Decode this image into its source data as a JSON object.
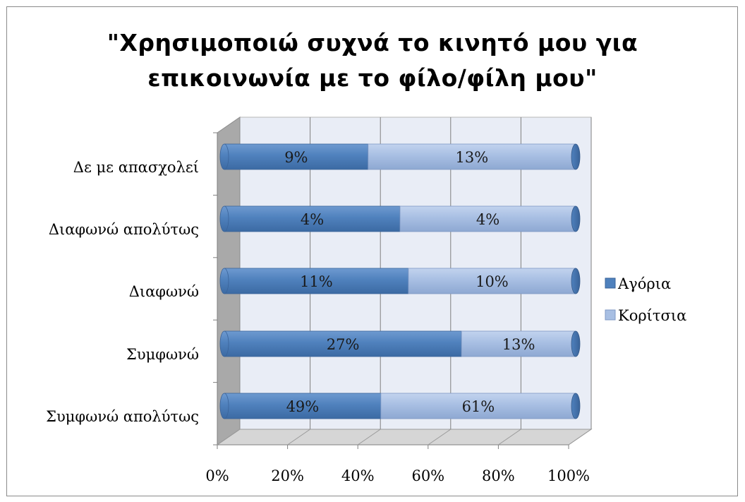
{
  "chart_data": {
    "type": "bar",
    "orientation": "horizontal",
    "stacked": "percent",
    "style": "3d-cylinder",
    "title": "\"Χρησιμοποιώ συχνά το κινητό μου για επικοινωνία με το φίλο/φίλη μου\"",
    "title_lines": [
      "\"Χρησιμοποιώ συχνά το κινητό μου για",
      "επικοινωνία με το φίλο/φίλη μου\""
    ],
    "categories": [
      "Δε με απασχολεί",
      "Διαφωνώ απολύτως",
      "Διαφωνώ",
      "Συμφωνώ",
      "Συμφωνώ απολύτως"
    ],
    "series": [
      {
        "name": "Αγόρια",
        "values": [
          9,
          4,
          11,
          27,
          49
        ],
        "labels": [
          "9%",
          "4%",
          "11%",
          "27%",
          "49%"
        ],
        "color": "#4f81bd"
      },
      {
        "name": "Κορίτσια",
        "values": [
          13,
          4,
          10,
          13,
          61
        ],
        "labels": [
          "13%",
          "4%",
          "10%",
          "13%",
          "61%"
        ],
        "color": "#a8bfe3"
      }
    ],
    "xlim": [
      0,
      100
    ],
    "x_ticks": [
      "0%",
      "20%",
      "40%",
      "60%",
      "80%",
      "100%"
    ],
    "grid": true,
    "legend_position": "right"
  }
}
